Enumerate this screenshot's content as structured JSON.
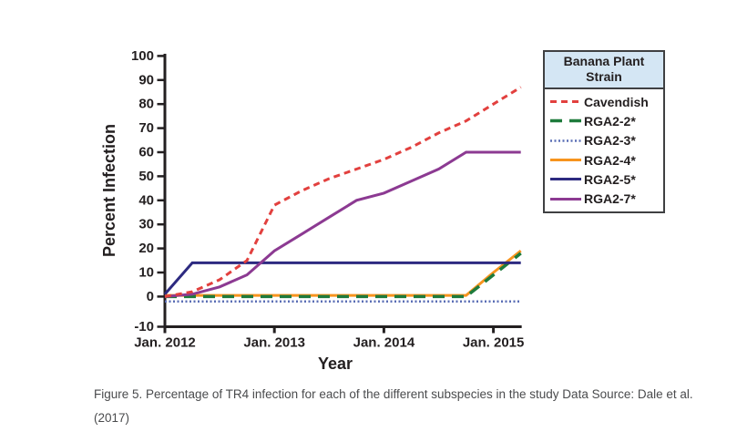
{
  "figure": {
    "caption_line1": "Figure 5. Percentage of TR4 infection for each of the different subspecies in the study Data Source: Dale et al.",
    "caption_line2": "(2017)"
  },
  "legend": {
    "title_line1": "Banana Plant",
    "title_line2": "Strain",
    "header_bg": "#D4E6F4",
    "border_color": "#3F4042",
    "items": [
      {
        "label": "Cavendish"
      },
      {
        "label": "RGA2-2*"
      },
      {
        "label": "RGA2-3*"
      },
      {
        "label": "RGA2-4*"
      },
      {
        "label": "RGA2-5*"
      },
      {
        "label": "RGA2-7*"
      }
    ]
  },
  "chart_data": {
    "type": "line",
    "title": "",
    "xlabel": "Year",
    "ylabel": "Percent Infection",
    "axis_color": "#231F20",
    "xlim": [
      2012,
      2015.25
    ],
    "ylim": [
      -10,
      100
    ],
    "grid": false,
    "legend_position": "right",
    "x_tick_labels": [
      "Jan. 2012",
      "Jan. 2013",
      "Jan. 2014",
      "Jan. 2015"
    ],
    "x_tick_values": [
      2012,
      2013,
      2014,
      2015
    ],
    "y_ticks": [
      -10,
      0,
      10,
      20,
      30,
      40,
      50,
      60,
      70,
      80,
      90,
      100
    ],
    "x": [
      2012,
      2012.25,
      2012.5,
      2012.75,
      2013,
      2013.25,
      2013.5,
      2013.75,
      2014,
      2014.25,
      2014.5,
      2014.75,
      2015,
      2015.25
    ],
    "draw_order": [
      "RGA2-3*",
      "RGA2-4*",
      "RGA2-2*",
      "RGA2-5*",
      "RGA2-7*",
      "Cavendish"
    ],
    "series": [
      {
        "name": "Cavendish",
        "color": "#E2403E",
        "style": "dashed",
        "dash": "7 5",
        "width": 3,
        "values": [
          0,
          2,
          7,
          15,
          38,
          44,
          49,
          53,
          57,
          62,
          68,
          73,
          80,
          87
        ]
      },
      {
        "name": "RGA2-2*",
        "color": "#1E7B3C",
        "style": "long-dashed",
        "dash": "13 8",
        "width": 3.5,
        "values": [
          0,
          0,
          0,
          0,
          0,
          0,
          0,
          0,
          0,
          0,
          0,
          0,
          9,
          18
        ]
      },
      {
        "name": "RGA2-3*",
        "color": "#5A6EB5",
        "style": "dotted",
        "dash": "2 2.5",
        "width": 2.5,
        "values": [
          -2,
          -2,
          -2,
          -2,
          -2,
          -2,
          -2,
          -2,
          -2,
          -2,
          -2,
          -2,
          -2,
          -2
        ]
      },
      {
        "name": "RGA2-4*",
        "color": "#F7941E",
        "style": "solid",
        "dash": "",
        "width": 3,
        "values": [
          0.5,
          0.5,
          0.5,
          0.5,
          0.5,
          0.5,
          0.5,
          0.5,
          0.5,
          0.5,
          0.5,
          0.5,
          10,
          19
        ]
      },
      {
        "name": "RGA2-5*",
        "color": "#2D2A80",
        "style": "solid",
        "dash": "",
        "width": 3,
        "values": [
          1,
          14,
          14,
          14,
          14,
          14,
          14,
          14,
          14,
          14,
          14,
          14,
          14,
          14
        ]
      },
      {
        "name": "RGA2-7*",
        "color": "#8C3A92",
        "style": "solid",
        "dash": "",
        "width": 3,
        "values": [
          0,
          1,
          4,
          9,
          19,
          26,
          33,
          40,
          43,
          48,
          53,
          60,
          60,
          60
        ]
      }
    ]
  }
}
